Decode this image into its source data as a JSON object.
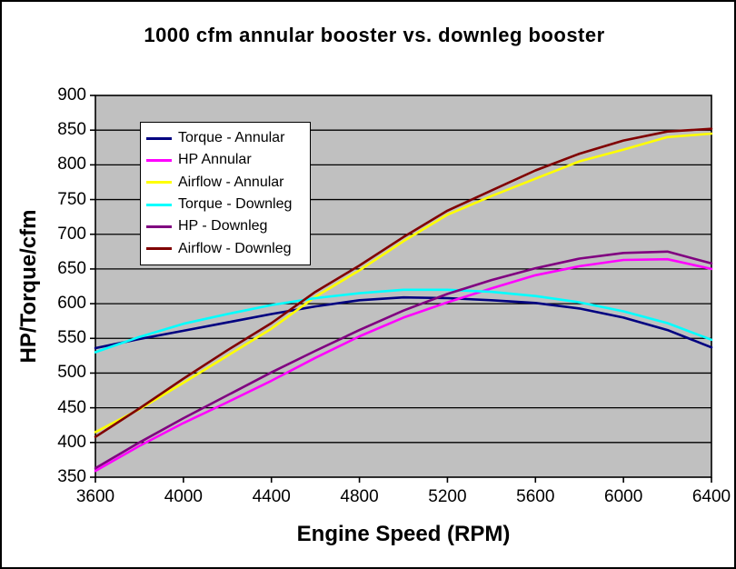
{
  "window": {
    "background": "#ffffff",
    "border_color": "#000000"
  },
  "chart_data": {
    "type": "line",
    "title": "1000 cfm annular booster vs. downleg booster",
    "xlabel": "Engine Speed (RPM)",
    "ylabel": "HP/Torque/cfm",
    "plot_bg": "#c0c0c0",
    "grid": "horizontal-only",
    "legend_position": "upper-left-inside",
    "xlim": [
      3600,
      6400
    ],
    "ylim": [
      350,
      900
    ],
    "x_ticks": [
      3600,
      4000,
      4400,
      4800,
      5200,
      5600,
      6000,
      6400
    ],
    "y_ticks": [
      350,
      400,
      450,
      500,
      550,
      600,
      650,
      700,
      750,
      800,
      850,
      900
    ],
    "x": [
      3600,
      3800,
      4000,
      4200,
      4400,
      4600,
      4800,
      5000,
      5200,
      5400,
      5600,
      5800,
      6000,
      6200,
      6400
    ],
    "series": [
      {
        "name": "Torque - Annular",
        "color": "#000080",
        "values": [
          536,
          549,
          561,
          573,
          585,
          596,
          605,
          609,
          608,
          605,
          601,
          593,
          580,
          562,
          537
        ]
      },
      {
        "name": "HP Annular",
        "color": "#ff00ff",
        "values": [
          359,
          395,
          428,
          458,
          489,
          522,
          553,
          580,
          602,
          622,
          641,
          654,
          663,
          664,
          650
        ]
      },
      {
        "name": "Airflow - Annular",
        "color": "#ffff00",
        "values": [
          415,
          448,
          486,
          525,
          564,
          610,
          648,
          690,
          728,
          755,
          780,
          805,
          822,
          840,
          845
        ]
      },
      {
        "name": "Torque - Downleg",
        "color": "#00ffff",
        "values": [
          530,
          552,
          571,
          585,
          598,
          608,
          615,
          620,
          620,
          617,
          611,
          602,
          589,
          572,
          548
        ]
      },
      {
        "name": "HP - Downleg",
        "color": "#800080",
        "values": [
          363,
          400,
          435,
          468,
          501,
          532,
          562,
          590,
          614,
          634,
          651,
          665,
          673,
          675,
          658
        ]
      },
      {
        "name": "Airflow - Downleg",
        "color": "#800000",
        "values": [
          408,
          449,
          492,
          533,
          572,
          617,
          655,
          696,
          734,
          763,
          792,
          816,
          835,
          848,
          852
        ]
      }
    ]
  }
}
